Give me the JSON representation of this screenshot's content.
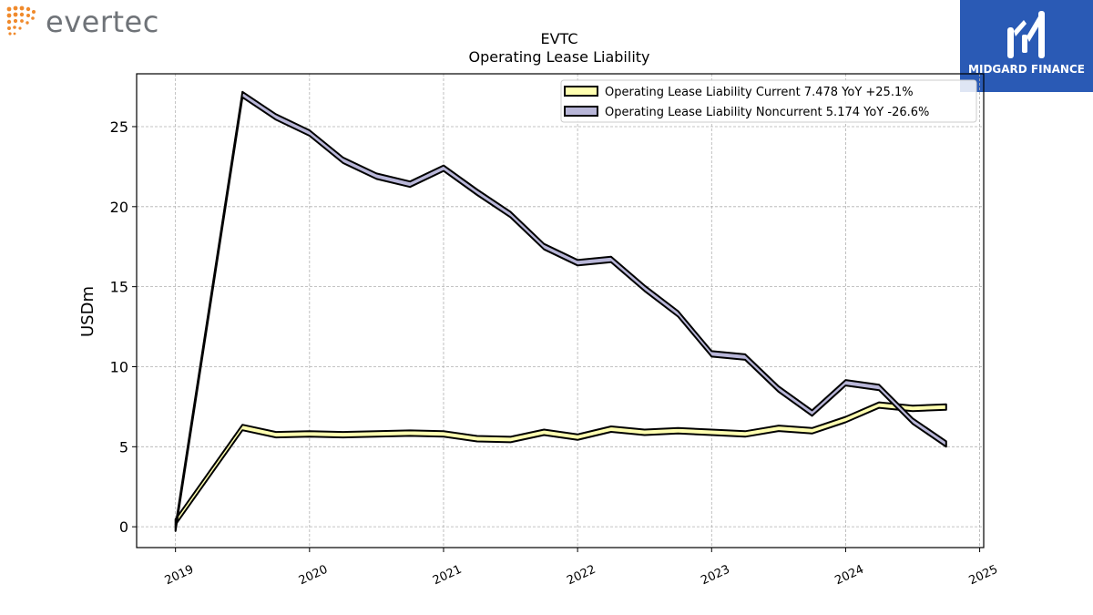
{
  "logos": {
    "left_name": "evertec",
    "right_name": "MIDGARD FINANCE"
  },
  "chart_data": {
    "type": "line",
    "title": "EVTC",
    "subtitle": "Operating Lease Liability",
    "ylabel": "USDm",
    "xlabel": "",
    "ylim": [
      -1.3,
      28.3
    ],
    "xlim": [
      2018.71,
      2025.03
    ],
    "yticks": [
      0,
      5,
      10,
      15,
      20,
      25
    ],
    "xticks": [
      "2019",
      "2020",
      "2021",
      "2022",
      "2023",
      "2024",
      "2025"
    ],
    "grid": true,
    "legend_position": "top-right",
    "x": [
      2019.0,
      2019.5,
      2019.75,
      2020.0,
      2020.25,
      2020.5,
      2020.75,
      2021.0,
      2021.25,
      2021.5,
      2021.75,
      2022.0,
      2022.25,
      2022.5,
      2022.75,
      2023.0,
      2023.25,
      2023.5,
      2023.75,
      2024.0,
      2024.25,
      2024.5,
      2024.75
    ],
    "series": [
      {
        "name": "Operating Lease Liability Current",
        "legend_label": "Operating Lease Liability Current  7.478 YoY +25.1%",
        "color": "#ffffb0",
        "values": [
          0.3,
          6.2,
          5.75,
          5.8,
          5.75,
          5.8,
          5.85,
          5.8,
          5.5,
          5.45,
          5.9,
          5.6,
          6.1,
          5.9,
          6.0,
          5.9,
          5.8,
          6.15,
          6.0,
          6.7,
          7.6,
          7.4,
          7.48
        ]
      },
      {
        "name": "Operating Lease Liability Noncurrent",
        "legend_label": "Operating Lease Liability Noncurrent  5.174 YoY -26.6%",
        "color": "#b8b6d8",
        "values": [
          -0.1,
          27.0,
          25.6,
          24.6,
          22.9,
          21.9,
          21.4,
          22.4,
          20.9,
          19.5,
          17.5,
          16.5,
          16.7,
          14.9,
          13.3,
          10.8,
          10.6,
          8.6,
          7.1,
          9.0,
          8.7,
          6.6,
          5.17
        ]
      }
    ]
  }
}
